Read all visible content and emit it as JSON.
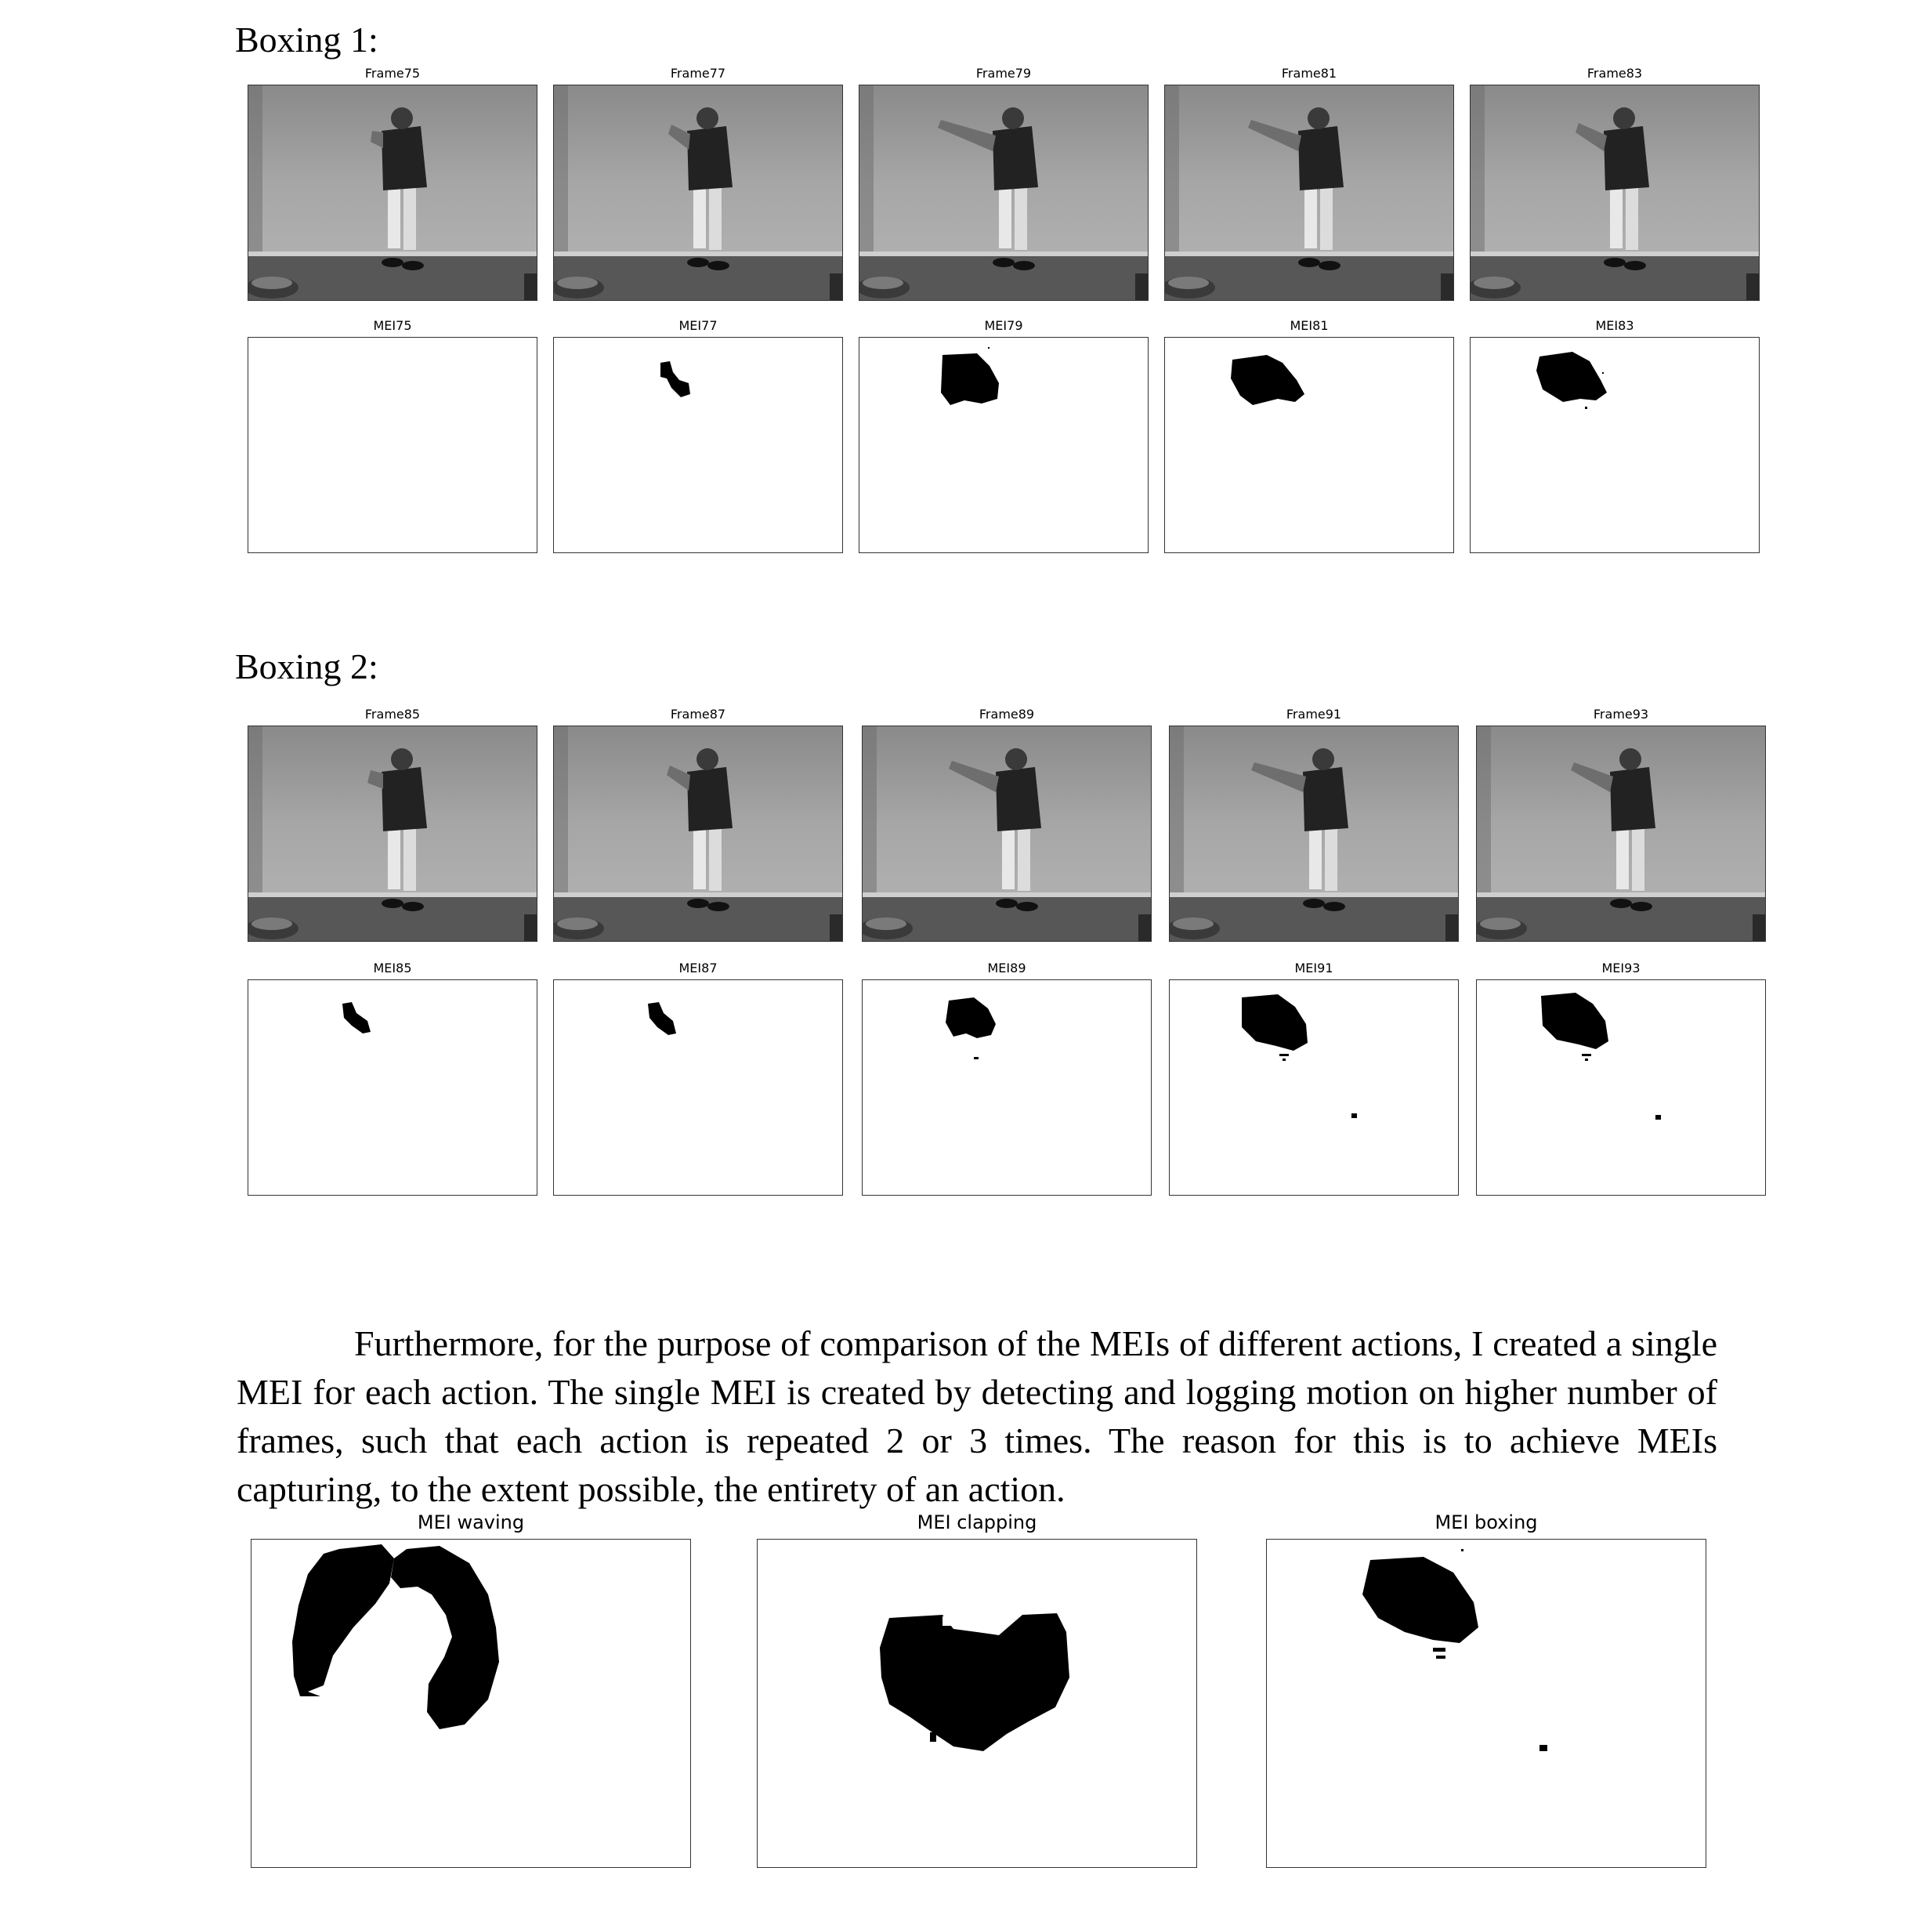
{
  "headings": {
    "boxing1": "Boxing 1:",
    "boxing2": "Boxing 2:"
  },
  "boxing1": {
    "frames": [
      "Frame75",
      "Frame77",
      "Frame79",
      "Frame81",
      "Frame83"
    ],
    "meis": [
      "MEI75",
      "MEI77",
      "MEI79",
      "MEI81",
      "MEI83"
    ]
  },
  "boxing2": {
    "frames": [
      "Frame85",
      "Frame87",
      "Frame89",
      "Frame91",
      "Frame93"
    ],
    "meis": [
      "MEI85",
      "MEI87",
      "MEI89",
      "MEI91",
      "MEI93"
    ]
  },
  "paragraph": "Furthermore, for the purpose of comparison of the MEIs of different actions, I created a single MEI for each action. The single MEI is created by detecting and logging motion on higher number of frames, such that each action is repeated 2 or 3 times. The reason for this is to achieve MEIs capturing, to the extent possible, the entirety of an action.",
  "action_meis": [
    "MEI waving",
    "MEI clapping",
    "MEI boxing"
  ]
}
